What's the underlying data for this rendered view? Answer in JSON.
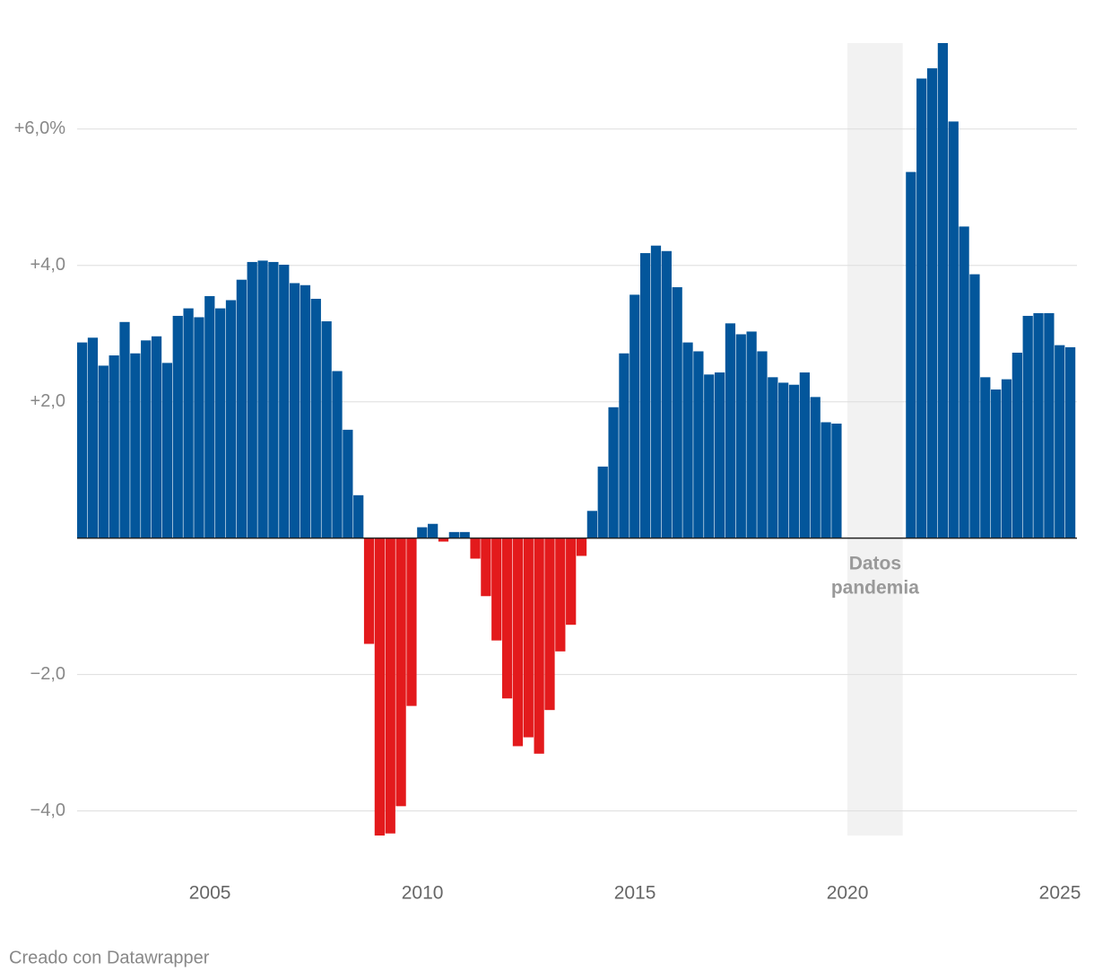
{
  "chart_data": {
    "type": "bar",
    "x": [
      2002.0,
      2002.25,
      2002.5,
      2002.75,
      2003.0,
      2003.25,
      2003.5,
      2003.75,
      2004.0,
      2004.25,
      2004.5,
      2004.75,
      2005.0,
      2005.25,
      2005.5,
      2005.75,
      2006.0,
      2006.25,
      2006.5,
      2006.75,
      2007.0,
      2007.25,
      2007.5,
      2007.75,
      2008.0,
      2008.25,
      2008.5,
      2008.75,
      2009.0,
      2009.25,
      2009.5,
      2009.75,
      2010.0,
      2010.25,
      2010.5,
      2010.75,
      2011.0,
      2011.25,
      2011.5,
      2011.75,
      2012.0,
      2012.25,
      2012.5,
      2012.75,
      2013.0,
      2013.25,
      2013.5,
      2013.75,
      2014.0,
      2014.25,
      2014.5,
      2014.75,
      2015.0,
      2015.25,
      2015.5,
      2015.75,
      2016.0,
      2016.25,
      2016.5,
      2016.75,
      2017.0,
      2017.25,
      2017.5,
      2017.75,
      2018.0,
      2018.25,
      2018.5,
      2018.75,
      2019.0,
      2019.25,
      2019.5,
      2019.75,
      2020.0,
      2020.25,
      2020.5,
      2020.75,
      2021.0,
      2021.25,
      2021.5,
      2021.75,
      2022.0,
      2022.25,
      2022.5,
      2022.75,
      2023.0,
      2023.25,
      2023.5,
      2023.75,
      2024.0,
      2024.25,
      2024.5,
      2024.75,
      2025.0,
      2025.25
    ],
    "values": [
      2.87,
      2.94,
      2.53,
      2.68,
      3.17,
      2.71,
      2.9,
      2.96,
      2.57,
      3.26,
      3.37,
      3.24,
      3.55,
      3.37,
      3.49,
      3.79,
      4.05,
      4.07,
      4.05,
      4.01,
      3.74,
      3.71,
      3.51,
      3.18,
      2.45,
      1.59,
      0.63,
      -1.55,
      -4.36,
      -4.33,
      -3.93,
      -2.46,
      0.16,
      0.21,
      -0.05,
      0.09,
      0.09,
      -0.3,
      -0.85,
      -1.5,
      -2.35,
      -3.05,
      -2.92,
      -3.16,
      -2.52,
      -1.66,
      -1.27,
      -0.26,
      0.4,
      1.05,
      1.92,
      2.71,
      3.57,
      4.18,
      4.29,
      4.21,
      3.68,
      2.87,
      2.74,
      2.4,
      2.43,
      3.15,
      2.99,
      3.03,
      2.74,
      2.36,
      2.28,
      2.25,
      2.43,
      2.07,
      1.7,
      1.68,
      null,
      null,
      null,
      null,
      null,
      null,
      5.37,
      6.74,
      6.89,
      7.26,
      6.11,
      4.57,
      3.87,
      2.36,
      2.18,
      2.33,
      2.72,
      3.26,
      3.3,
      3.3,
      2.83,
      2.8
    ],
    "color": "#03569b",
    "negative_color": "#e31a1c",
    "xlim": [
      2001.875,
      2025.4
    ],
    "xticks": [
      2005,
      2010,
      2015,
      2020,
      2025
    ],
    "ylim": [
      -4.36,
      7.26
    ],
    "yticks": [
      {
        "value": 6,
        "label": "+6,0%"
      },
      {
        "value": 4,
        "label": "+4,0"
      },
      {
        "value": 2,
        "label": "+2,0"
      },
      {
        "value": -2,
        "label": "−2,0"
      },
      {
        "value": -4,
        "label": "−4,0"
      }
    ],
    "grid": true,
    "highlight": {
      "x": [
        2020.0,
        2021.3
      ],
      "label": [
        "Datos",
        "pandemia"
      ],
      "color": "#f2f2f2"
    },
    "footer": "Creado con Datawrapper"
  }
}
